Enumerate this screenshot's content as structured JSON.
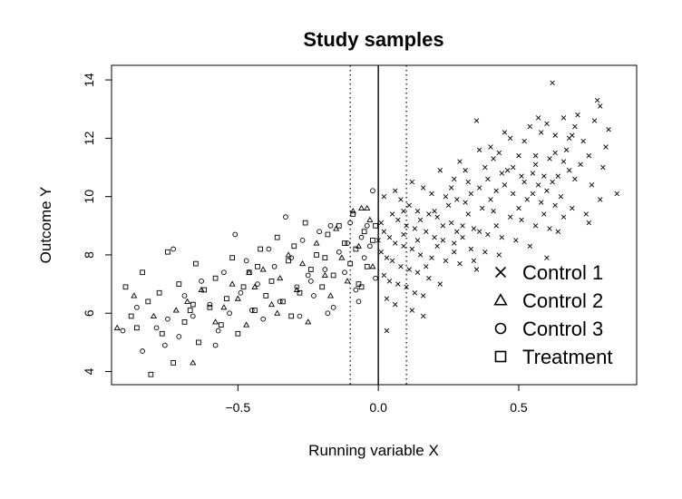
{
  "chart_data": {
    "type": "scatter",
    "title": "Study samples",
    "xlabel": "Running variable X",
    "ylabel": "Outcome Y",
    "xlim": [
      -0.95,
      0.92
    ],
    "ylim": [
      3.55,
      14.5
    ],
    "x_ticks": [
      -0.5,
      0.0,
      0.5
    ],
    "x_tick_labels": [
      "−0.5",
      "0.0",
      "0.5"
    ],
    "y_ticks": [
      4,
      6,
      8,
      10,
      12,
      14
    ],
    "y_tick_labels": [
      "4",
      "6",
      "8",
      "10",
      "12",
      "14"
    ],
    "vertical_lines": [
      {
        "x": 0.0,
        "style": "solid"
      },
      {
        "x": -0.1,
        "style": "dotted"
      },
      {
        "x": 0.1,
        "style": "dotted"
      }
    ],
    "grid": false,
    "legend_position": "bottom-right",
    "legend": [
      {
        "label": "Control 1",
        "marker": "cross"
      },
      {
        "label": "Control 2",
        "marker": "triangle"
      },
      {
        "label": "Control 3",
        "marker": "circle"
      },
      {
        "label": "Treatment",
        "marker": "square"
      }
    ],
    "series": [
      {
        "name": "Control 1",
        "marker": "cross",
        "points": [
          [
            0.62,
            13.9
          ],
          [
            0.78,
            13.3
          ],
          [
            0.79,
            13.1
          ],
          [
            0.71,
            12.8
          ],
          [
            0.57,
            12.7
          ],
          [
            0.66,
            12.7
          ],
          [
            0.6,
            12.5
          ],
          [
            0.35,
            12.6
          ],
          [
            0.82,
            12.3
          ],
          [
            0.63,
            12.1
          ],
          [
            0.68,
            12.0
          ],
          [
            0.52,
            11.9
          ],
          [
            0.45,
            12.2
          ],
          [
            0.4,
            11.7
          ],
          [
            0.43,
            11.5
          ],
          [
            0.5,
            11.4
          ],
          [
            0.56,
            11.4
          ],
          [
            0.61,
            11.3
          ],
          [
            0.66,
            11.2
          ],
          [
            0.72,
            11.1
          ],
          [
            0.8,
            11.0
          ],
          [
            0.29,
            11.2
          ],
          [
            0.38,
            11.0
          ],
          [
            0.46,
            10.9
          ],
          [
            0.55,
            10.8
          ],
          [
            0.59,
            10.7
          ],
          [
            0.64,
            10.7
          ],
          [
            0.7,
            10.6
          ],
          [
            0.76,
            10.4
          ],
          [
            0.85,
            10.1
          ],
          [
            0.22,
            10.9
          ],
          [
            0.27,
            10.6
          ],
          [
            0.32,
            10.5
          ],
          [
            0.36,
            10.3
          ],
          [
            0.42,
            10.2
          ],
          [
            0.48,
            10.1
          ],
          [
            0.53,
            9.9
          ],
          [
            0.58,
            9.8
          ],
          [
            0.63,
            9.7
          ],
          [
            0.69,
            9.6
          ],
          [
            0.74,
            9.4
          ],
          [
            0.79,
            9.9
          ],
          [
            0.12,
            10.5
          ],
          [
            0.16,
            10.3
          ],
          [
            0.19,
            10.1
          ],
          [
            0.24,
            10.0
          ],
          [
            0.28,
            9.9
          ],
          [
            0.31,
            9.8
          ],
          [
            0.37,
            9.6
          ],
          [
            0.41,
            9.5
          ],
          [
            0.47,
            9.3
          ],
          [
            0.51,
            9.2
          ],
          [
            0.56,
            9.0
          ],
          [
            0.61,
            8.9
          ],
          [
            0.66,
            9.3
          ],
          [
            0.08,
            9.9
          ],
          [
            0.11,
            9.7
          ],
          [
            0.14,
            9.5
          ],
          [
            0.18,
            9.4
          ],
          [
            0.21,
            9.3
          ],
          [
            0.26,
            9.1
          ],
          [
            0.3,
            9.0
          ],
          [
            0.34,
            8.9
          ],
          [
            0.39,
            8.7
          ],
          [
            0.44,
            8.6
          ],
          [
            0.49,
            8.5
          ],
          [
            0.54,
            8.3
          ],
          [
            0.05,
            9.4
          ],
          [
            0.07,
            9.2
          ],
          [
            0.1,
            9.0
          ],
          [
            0.13,
            8.9
          ],
          [
            0.17,
            8.8
          ],
          [
            0.2,
            8.6
          ],
          [
            0.23,
            8.5
          ],
          [
            0.27,
            8.4
          ],
          [
            0.33,
            8.2
          ],
          [
            0.38,
            8.1
          ],
          [
            0.43,
            8.0
          ],
          [
            0.02,
            8.8
          ],
          [
            0.04,
            8.6
          ],
          [
            0.06,
            8.4
          ],
          [
            0.09,
            8.3
          ],
          [
            0.12,
            8.2
          ],
          [
            0.15,
            8.0
          ],
          [
            0.19,
            7.9
          ],
          [
            0.24,
            7.8
          ],
          [
            0.29,
            7.7
          ],
          [
            0.35,
            7.5
          ],
          [
            0.01,
            8.1
          ],
          [
            0.03,
            7.9
          ],
          [
            0.05,
            7.8
          ],
          [
            0.08,
            7.6
          ],
          [
            0.11,
            7.5
          ],
          [
            0.14,
            7.4
          ],
          [
            0.18,
            7.2
          ],
          [
            0.22,
            7.0
          ],
          [
            0.02,
            7.3
          ],
          [
            0.04,
            7.1
          ],
          [
            0.07,
            7.0
          ],
          [
            0.1,
            6.9
          ],
          [
            0.13,
            6.7
          ],
          [
            0.16,
            6.6
          ],
          [
            0.03,
            6.5
          ],
          [
            0.06,
            6.3
          ],
          [
            0.12,
            6.1
          ],
          [
            0.16,
            5.9
          ],
          [
            0.03,
            5.4
          ],
          [
            0.48,
            11.0
          ],
          [
            0.44,
            10.8
          ],
          [
            0.39,
            10.6
          ],
          [
            0.33,
            10.1
          ],
          [
            0.25,
            9.7
          ],
          [
            0.2,
            9.5
          ],
          [
            0.15,
            9.2
          ],
          [
            0.09,
            8.7
          ],
          [
            0.52,
            10.5
          ],
          [
            0.57,
            10.4
          ],
          [
            0.6,
            10.2
          ],
          [
            0.65,
            10.0
          ],
          [
            0.67,
            11.6
          ],
          [
            0.73,
            11.9
          ],
          [
            0.58,
            12.2
          ],
          [
            0.47,
            12.0
          ],
          [
            0.41,
            11.3
          ],
          [
            0.36,
            11.6
          ],
          [
            0.31,
            10.9
          ],
          [
            0.26,
            10.3
          ],
          [
            0.23,
            9.0
          ],
          [
            0.3,
            8.6
          ],
          [
            0.36,
            8.8
          ],
          [
            0.42,
            9.0
          ],
          [
            0.5,
            9.6
          ],
          [
            0.55,
            10.1
          ],
          [
            0.62,
            10.5
          ],
          [
            0.68,
            10.9
          ],
          [
            0.75,
            11.4
          ],
          [
            0.81,
            11.7
          ],
          [
            0.7,
            12.4
          ],
          [
            0.54,
            12.4
          ],
          [
            0.59,
            9.4
          ],
          [
            0.64,
            8.8
          ],
          [
            0.75,
            9.1
          ],
          [
            0.6,
            7.9
          ],
          [
            0.17,
            7.6
          ],
          [
            0.21,
            8.3
          ],
          [
            0.27,
            8.1
          ],
          [
            0.32,
            9.4
          ],
          [
            0.4,
            9.9
          ],
          [
            0.45,
            10.4
          ],
          [
            0.51,
            10.7
          ],
          [
            0.56,
            11.1
          ],
          [
            0.63,
            11.5
          ],
          [
            0.69,
            12.1
          ],
          [
            0.77,
            12.6
          ],
          [
            0.34,
            7.8
          ],
          [
            0.28,
            8.8
          ],
          [
            0.14,
            8.5
          ],
          [
            0.09,
            9.5
          ],
          [
            0.06,
            10.2
          ],
          [
            0.01,
            9.1
          ],
          [
            0.0,
            8.5
          ],
          [
            0.02,
            10.0
          ]
        ]
      },
      {
        "name": "Control 2",
        "marker": "triangle",
        "points": [
          [
            -0.93,
            5.5
          ],
          [
            -0.87,
            6.6
          ],
          [
            -0.8,
            5.9
          ],
          [
            -0.72,
            6.1
          ],
          [
            -0.68,
            6.4
          ],
          [
            -0.66,
            4.3
          ],
          [
            -0.63,
            6.8
          ],
          [
            -0.58,
            5.7
          ],
          [
            -0.55,
            6.2
          ],
          [
            -0.52,
            7.0
          ],
          [
            -0.5,
            6.5
          ],
          [
            -0.47,
            5.6
          ],
          [
            -0.44,
            6.9
          ],
          [
            -0.41,
            7.5
          ],
          [
            -0.38,
            6.3
          ],
          [
            -0.35,
            7.2
          ],
          [
            -0.32,
            8.0
          ],
          [
            -0.29,
            6.8
          ],
          [
            -0.27,
            7.7
          ],
          [
            -0.25,
            5.7
          ],
          [
            -0.22,
            8.4
          ],
          [
            -0.19,
            7.3
          ],
          [
            -0.17,
            6.6
          ],
          [
            -0.15,
            8.9
          ],
          [
            -0.13,
            7.9
          ],
          [
            -0.11,
            7.1
          ],
          [
            -0.09,
            9.5
          ],
          [
            -0.07,
            8.3
          ],
          [
            -0.06,
            9.6
          ],
          [
            -0.04,
            9.6
          ],
          [
            -0.03,
            9.2
          ],
          [
            -0.02,
            7.6
          ],
          [
            -0.46,
            7.4
          ],
          [
            -0.36,
            6.0
          ]
        ]
      },
      {
        "name": "Control 3",
        "marker": "circle",
        "points": [
          [
            -0.91,
            5.4
          ],
          [
            -0.86,
            6.2
          ],
          [
            -0.84,
            4.7
          ],
          [
            -0.79,
            5.5
          ],
          [
            -0.76,
            4.9
          ],
          [
            -0.73,
            8.2
          ],
          [
            -0.71,
            5.2
          ],
          [
            -0.69,
            6.6
          ],
          [
            -0.66,
            5.9
          ],
          [
            -0.63,
            7.1
          ],
          [
            -0.6,
            6.3
          ],
          [
            -0.57,
            5.4
          ],
          [
            -0.55,
            7.4
          ],
          [
            -0.53,
            6.0
          ],
          [
            -0.51,
            8.7
          ],
          [
            -0.49,
            6.7
          ],
          [
            -0.47,
            7.8
          ],
          [
            -0.45,
            6.1
          ],
          [
            -0.43,
            7.0
          ],
          [
            -0.41,
            5.8
          ],
          [
            -0.39,
            8.2
          ],
          [
            -0.37,
            7.6
          ],
          [
            -0.35,
            6.4
          ],
          [
            -0.33,
            9.3
          ],
          [
            -0.31,
            7.9
          ],
          [
            -0.29,
            6.9
          ],
          [
            -0.27,
            8.5
          ],
          [
            -0.25,
            7.3
          ],
          [
            -0.23,
            6.6
          ],
          [
            -0.21,
            8.8
          ],
          [
            -0.19,
            7.5
          ],
          [
            -0.17,
            9.0
          ],
          [
            -0.16,
            6.2
          ],
          [
            -0.14,
            8.1
          ],
          [
            -0.12,
            7.4
          ],
          [
            -0.1,
            9.1
          ],
          [
            -0.08,
            6.8
          ],
          [
            -0.06,
            8.6
          ],
          [
            -0.05,
            7.9
          ],
          [
            -0.04,
            9.0
          ],
          [
            -0.03,
            8.3
          ],
          [
            -0.02,
            10.2
          ],
          [
            -0.01,
            7.2
          ],
          [
            -0.07,
            6.4
          ],
          [
            -0.18,
            6.0
          ],
          [
            -0.28,
            5.9
          ],
          [
            -0.24,
            7.1
          ],
          [
            -0.11,
            8.4
          ],
          [
            -0.75,
            5.8
          ],
          [
            -0.58,
            4.9
          ]
        ]
      },
      {
        "name": "Treatment",
        "marker": "square",
        "points": [
          [
            -0.9,
            6.9
          ],
          [
            -0.88,
            5.9
          ],
          [
            -0.86,
            5.5
          ],
          [
            -0.84,
            7.4
          ],
          [
            -0.82,
            6.4
          ],
          [
            -0.81,
            3.9
          ],
          [
            -0.78,
            6.7
          ],
          [
            -0.77,
            5.3
          ],
          [
            -0.75,
            8.1
          ],
          [
            -0.73,
            4.3
          ],
          [
            -0.71,
            7.0
          ],
          [
            -0.69,
            5.7
          ],
          [
            -0.67,
            6.1
          ],
          [
            -0.65,
            7.7
          ],
          [
            -0.64,
            5.0
          ],
          [
            -0.62,
            6.8
          ],
          [
            -0.6,
            6.2
          ],
          [
            -0.58,
            7.2
          ],
          [
            -0.56,
            5.6
          ],
          [
            -0.54,
            6.5
          ],
          [
            -0.52,
            7.9
          ],
          [
            -0.5,
            5.3
          ],
          [
            -0.48,
            6.9
          ],
          [
            -0.46,
            7.4
          ],
          [
            -0.44,
            6.1
          ],
          [
            -0.42,
            8.2
          ],
          [
            -0.4,
            6.6
          ],
          [
            -0.38,
            7.1
          ],
          [
            -0.36,
            8.6
          ],
          [
            -0.34,
            6.4
          ],
          [
            -0.32,
            7.8
          ],
          [
            -0.3,
            8.3
          ],
          [
            -0.28,
            6.7
          ],
          [
            -0.26,
            9.1
          ],
          [
            -0.24,
            7.5
          ],
          [
            -0.22,
            8.0
          ],
          [
            -0.2,
            6.9
          ],
          [
            -0.18,
            8.7
          ],
          [
            -0.16,
            7.3
          ],
          [
            -0.14,
            9.0
          ],
          [
            -0.12,
            8.4
          ],
          [
            -0.1,
            7.7
          ],
          [
            -0.09,
            9.4
          ],
          [
            -0.08,
            8.2
          ],
          [
            -0.07,
            7.0
          ],
          [
            -0.05,
            8.8
          ],
          [
            -0.04,
            7.6
          ],
          [
            -0.02,
            8.5
          ],
          [
            -0.01,
            9.0
          ],
          [
            -0.66,
            6.3
          ],
          [
            -0.43,
            7.6
          ],
          [
            -0.31,
            5.9
          ],
          [
            -0.19,
            7.9
          ],
          [
            -0.06,
            6.9
          ]
        ]
      }
    ]
  }
}
